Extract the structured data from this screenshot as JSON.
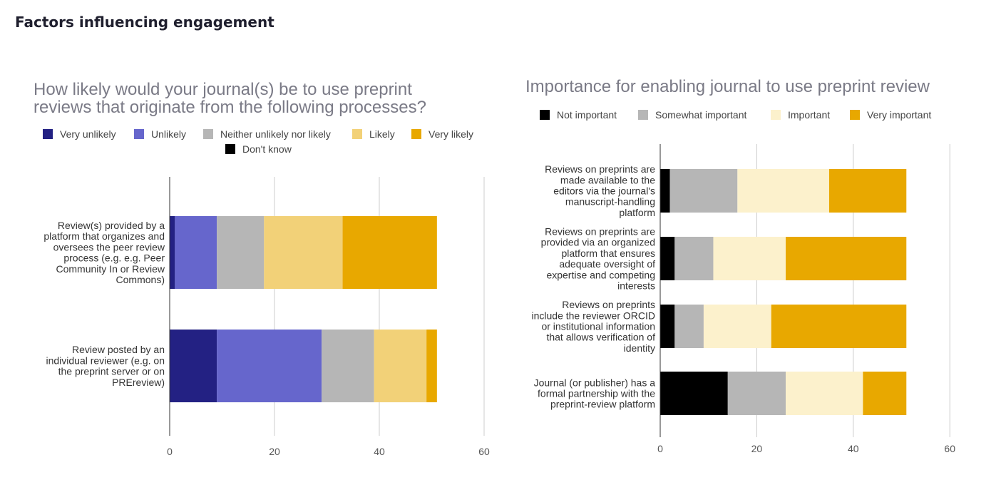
{
  "page": {
    "title": "Factors influencing engagement"
  },
  "chart_data": [
    {
      "type": "bar",
      "orientation": "horizontal",
      "stacked": true,
      "title_lines": [
        "How likely would your journal(s) be to use preprint",
        "reviews that originate from the following processes?"
      ],
      "categories": [
        [
          "Review(s) provided by a",
          "platform that organizes and",
          "oversees the peer review",
          "process (e.g. e.g. Peer",
          "Community In or Review",
          "Commons)"
        ],
        [
          "Review posted by an",
          "individual reviewer (e.g. on",
          "the preprint server or on",
          "PREreview)"
        ]
      ],
      "series": [
        {
          "name": "Very unlikely",
          "color": "#232183",
          "values": [
            1,
            9
          ]
        },
        {
          "name": "Unlikely",
          "color": "#6666cc",
          "values": [
            8,
            20
          ]
        },
        {
          "name": "Neither unlikely nor likely",
          "color": "#b6b6b6",
          "values": [
            9,
            10
          ]
        },
        {
          "name": "Likely",
          "color": "#f2d178",
          "values": [
            15,
            10
          ]
        },
        {
          "name": "Very likely",
          "color": "#e8a800",
          "values": [
            18,
            2
          ]
        },
        {
          "name": "Don't know",
          "color": "#000000",
          "values": [
            0,
            0
          ]
        }
      ],
      "xlim": [
        0,
        60
      ],
      "xticks": [
        0,
        20,
        40,
        60
      ],
      "grid": true,
      "legend": "top"
    },
    {
      "type": "bar",
      "orientation": "horizontal",
      "stacked": true,
      "title_lines": [
        "Importance for enabling journal to use preprint review"
      ],
      "categories": [
        [
          "Reviews on preprints are",
          "made available to the",
          "editors via the journal's",
          "manuscript-handling",
          "platform"
        ],
        [
          "Reviews on preprints are",
          "provided via an organized",
          "platform that ensures",
          "adequate oversight of",
          "expertise and competing",
          "interests"
        ],
        [
          "Reviews on preprints",
          "include the reviewer ORCID",
          "or institutional information",
          "that allows verification of",
          "identity"
        ],
        [
          "Journal (or publisher) has a",
          "formal partnership with the",
          "preprint-review platform"
        ]
      ],
      "series": [
        {
          "name": "Not important",
          "color": "#000000",
          "values": [
            2,
            3,
            3,
            14
          ]
        },
        {
          "name": "Somewhat important",
          "color": "#b6b6b6",
          "values": [
            14,
            8,
            6,
            12
          ]
        },
        {
          "name": "Important",
          "color": "#fcf1cc",
          "values": [
            19,
            15,
            14,
            16
          ]
        },
        {
          "name": "Very important",
          "color": "#e8a800",
          "values": [
            16,
            25,
            28,
            9
          ]
        }
      ],
      "xlim": [
        0,
        60
      ],
      "xticks": [
        0,
        20,
        40,
        60
      ],
      "grid": true,
      "legend": "top"
    }
  ]
}
